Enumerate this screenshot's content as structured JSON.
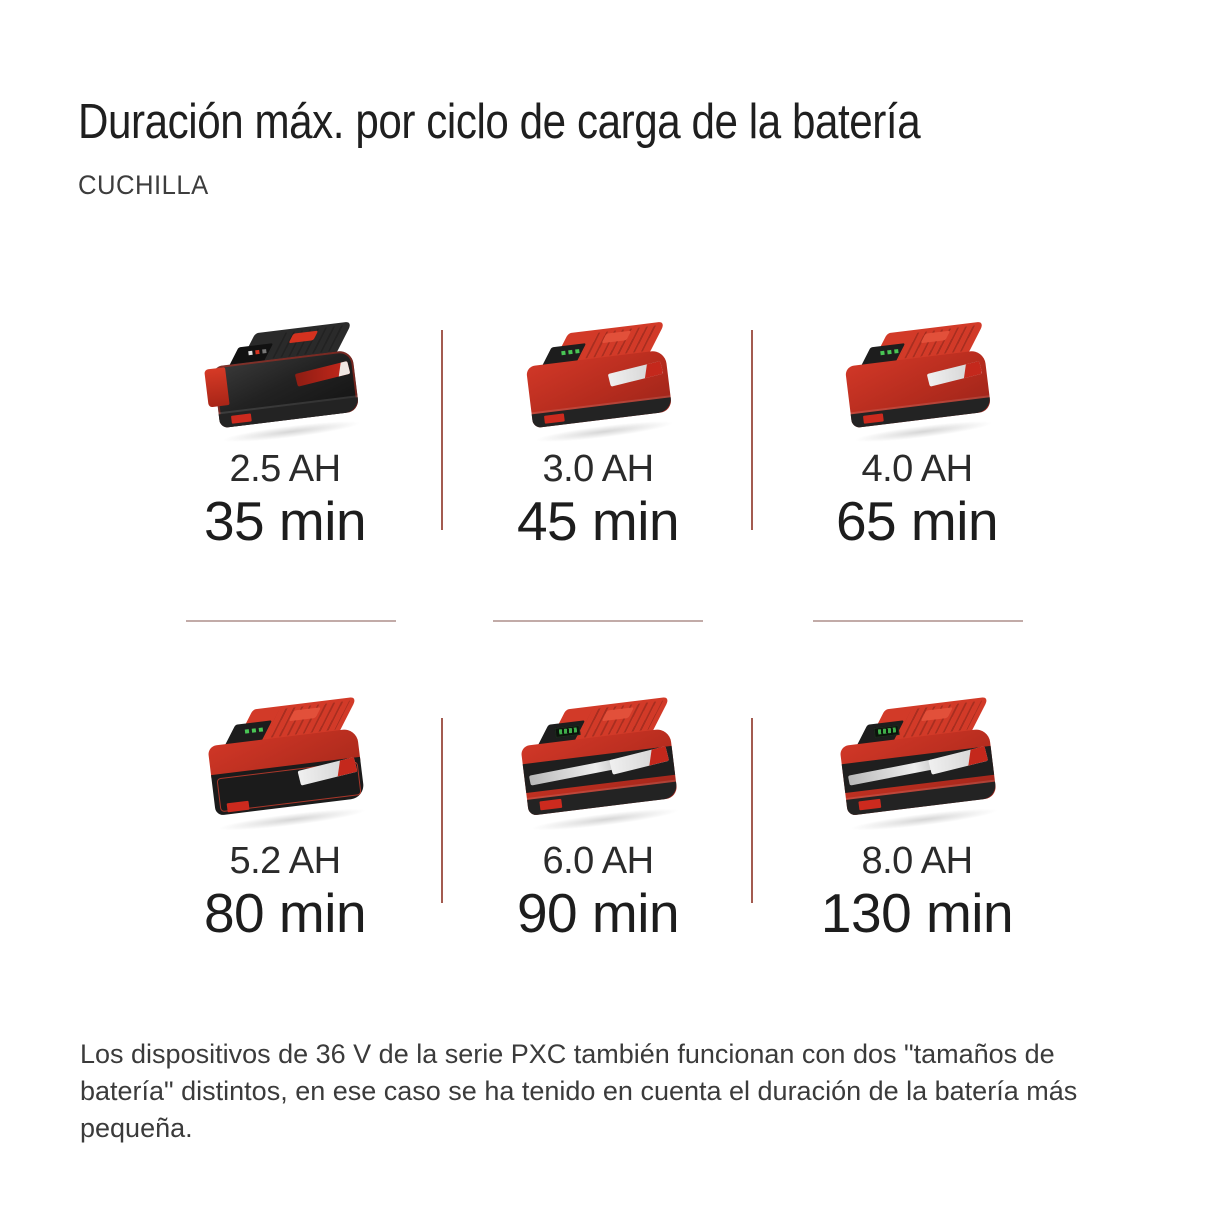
{
  "header": {
    "title": "Duración máx. por ciclo de carga de la batería",
    "subtitle": "CUCHILLA"
  },
  "grid": {
    "cells": [
      {
        "capacity": "2.5 AH",
        "duration": "35 min",
        "image": "einhell-pxc-battery-2.5ah"
      },
      {
        "capacity": "3.0 AH",
        "duration": "45 min",
        "image": "einhell-pxc-battery-3.0ah"
      },
      {
        "capacity": "4.0 AH",
        "duration": "65 min",
        "image": "einhell-pxc-battery-4.0ah"
      },
      {
        "capacity": "5.2 AH",
        "duration": "80 min",
        "image": "einhell-pxc-battery-5.2ah"
      },
      {
        "capacity": "6.0 AH",
        "duration": "90 min",
        "image": "einhell-pxc-battery-6.0ah"
      },
      {
        "capacity": "8.0 AH",
        "duration": "130 min",
        "image": "einhell-pxc-battery-8.0ah"
      }
    ]
  },
  "footer": {
    "note": "Los dispositivos de 36 V de la serie PXC también funcionan con dos \"tamaños de batería\" distintos, en ese caso se ha tenido en cuenta el duración de la batería más pequeña."
  },
  "colors": {
    "background": "#ffffff",
    "text_dark": "#1f1f1f",
    "brand_red": "#c4281c",
    "divider_vertical": "#a35b50",
    "divider_horizontal": "#c2aba8"
  }
}
